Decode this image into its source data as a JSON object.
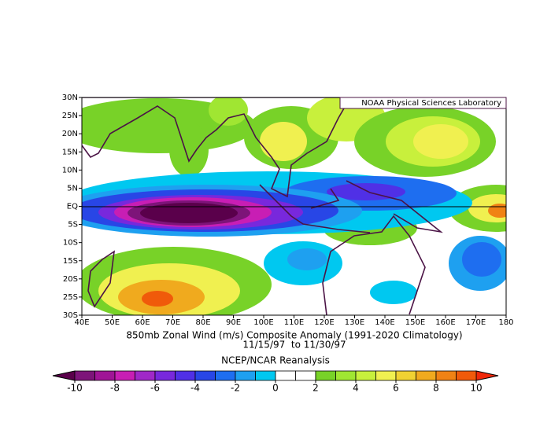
{
  "map": {
    "credit": "NOAA Physical Sciences Laboratory",
    "title": "850mb Zonal Wind (m/s) Composite Anomaly (1991-2020 Climatology)",
    "dates": "11/15/97  to 11/30/97",
    "source": "NCEP/NCAR Reanalysis",
    "lat_ticks": [
      {
        "value": 30,
        "label": "30N"
      },
      {
        "value": 25,
        "label": "25N"
      },
      {
        "value": 20,
        "label": "20N"
      },
      {
        "value": 15,
        "label": "15N"
      },
      {
        "value": 10,
        "label": "10N"
      },
      {
        "value": 5,
        "label": "5N"
      },
      {
        "value": 0,
        "label": "EQ"
      },
      {
        "value": -5,
        "label": "5S"
      },
      {
        "value": -10,
        "label": "10S"
      },
      {
        "value": -15,
        "label": "15S"
      },
      {
        "value": -20,
        "label": "20S"
      },
      {
        "value": -25,
        "label": "25S"
      },
      {
        "value": -30,
        "label": "30S"
      }
    ],
    "lon_ticks": [
      {
        "value": 40,
        "label": "40E"
      },
      {
        "value": 50,
        "label": "50E"
      },
      {
        "value": 60,
        "label": "60E"
      },
      {
        "value": 70,
        "label": "70E"
      },
      {
        "value": 80,
        "label": "80E"
      },
      {
        "value": 90,
        "label": "90E"
      },
      {
        "value": 100,
        "label": "100E"
      },
      {
        "value": 110,
        "label": "110E"
      },
      {
        "value": 120,
        "label": "120E"
      },
      {
        "value": 130,
        "label": "130E"
      },
      {
        "value": 140,
        "label": "140E"
      },
      {
        "value": 150,
        "label": "150E"
      },
      {
        "value": 160,
        "label": "160E"
      },
      {
        "value": 170,
        "label": "170E"
      },
      {
        "value": 180,
        "label": "180"
      }
    ],
    "colorbar": {
      "ticks": [
        -10,
        -8,
        -6,
        -4,
        -2,
        0,
        2,
        4,
        6,
        8,
        10
      ],
      "colors": [
        "#7d1479",
        "#a01496",
        "#c81eb4",
        "#a028c8",
        "#7828dc",
        "#5030e6",
        "#2846e6",
        "#1e6ef0",
        "#1ea0f0",
        "#00c8f0",
        "#ffffff",
        "#ffffff",
        "#78d228",
        "#a0e632",
        "#c8f03c",
        "#f0f050",
        "#f0d232",
        "#f0aa1e",
        "#f08214",
        "#f05a0a"
      ],
      "under": "#5a004b",
      "over": "#f0280a"
    }
  }
}
